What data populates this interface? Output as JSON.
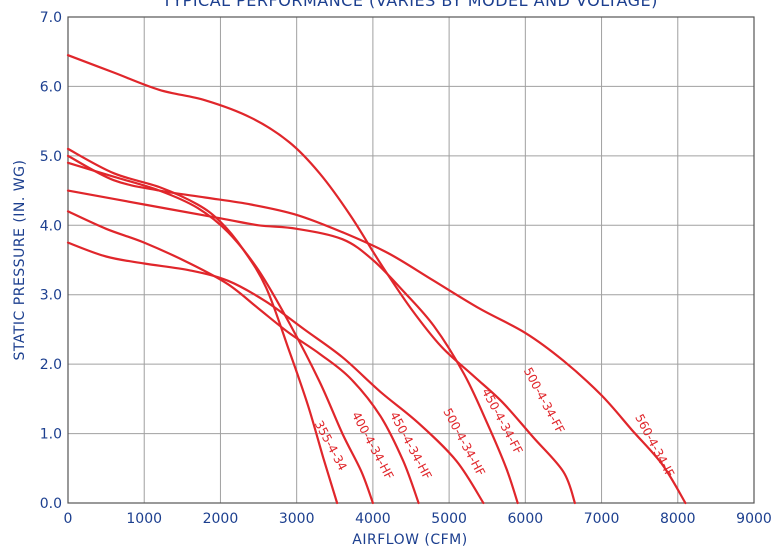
{
  "chart_data": {
    "type": "line",
    "title": "TYPICAL PERFORMANCE (VARIES BY MODEL AND VOLTAGE)",
    "xlabel": "AIRFLOW (CFM)",
    "ylabel": "STATIC PRESSURE (IN. WG)",
    "xlim": [
      0,
      9000
    ],
    "ylim": [
      0,
      7
    ],
    "x_ticks": [
      "0",
      "1000",
      "2000",
      "3000",
      "4000",
      "5000",
      "6000",
      "7000",
      "8000",
      "9000"
    ],
    "y_ticks": [
      "0.0",
      "1.0",
      "2.0",
      "3.0",
      "4.0",
      "5.0",
      "6.0",
      "7.0"
    ],
    "grid": true,
    "colors": {
      "curve": "#e0262b",
      "text": "#1c3f8f",
      "grid": "#a0a0a0"
    },
    "series": [
      {
        "name": "355-4-34",
        "points": [
          [
            0,
            5.1
          ],
          [
            600,
            4.75
          ],
          [
            1200,
            4.55
          ],
          [
            1700,
            4.3
          ],
          [
            2000,
            4.05
          ],
          [
            2300,
            3.65
          ],
          [
            2600,
            3.1
          ],
          [
            2900,
            2.2
          ],
          [
            3150,
            1.4
          ],
          [
            3350,
            0.65
          ],
          [
            3530,
            0.0
          ]
        ]
      },
      {
        "name": "400-4-34-HF",
        "points": [
          [
            0,
            4.9
          ],
          [
            600,
            4.7
          ],
          [
            1200,
            4.5
          ],
          [
            1700,
            4.25
          ],
          [
            2100,
            3.9
          ],
          [
            2500,
            3.35
          ],
          [
            2900,
            2.6
          ],
          [
            3300,
            1.75
          ],
          [
            3600,
            1.0
          ],
          [
            3850,
            0.45
          ],
          [
            4000,
            0.0
          ]
        ]
      },
      {
        "name": "450-4-34-HF",
        "points": [
          [
            0,
            4.2
          ],
          [
            500,
            3.95
          ],
          [
            1000,
            3.75
          ],
          [
            1600,
            3.45
          ],
          [
            2100,
            3.15
          ],
          [
            2500,
            2.8
          ],
          [
            2900,
            2.45
          ],
          [
            3300,
            2.15
          ],
          [
            3700,
            1.8
          ],
          [
            4100,
            1.25
          ],
          [
            4400,
            0.6
          ],
          [
            4600,
            0.0
          ]
        ]
      },
      {
        "name": "500-4-34-HF",
        "points": [
          [
            0,
            3.75
          ],
          [
            500,
            3.55
          ],
          [
            1000,
            3.45
          ],
          [
            1600,
            3.35
          ],
          [
            2100,
            3.2
          ],
          [
            2600,
            2.9
          ],
          [
            3100,
            2.5
          ],
          [
            3600,
            2.1
          ],
          [
            4100,
            1.6
          ],
          [
            4600,
            1.15
          ],
          [
            5100,
            0.6
          ],
          [
            5450,
            0.0
          ]
        ]
      },
      {
        "name": "450-4-34-FF",
        "points": [
          [
            0,
            4.5
          ],
          [
            1000,
            4.3
          ],
          [
            2000,
            4.1
          ],
          [
            2500,
            4.0
          ],
          [
            3000,
            3.95
          ],
          [
            3600,
            3.8
          ],
          [
            4000,
            3.5
          ],
          [
            4400,
            3.05
          ],
          [
            4800,
            2.55
          ],
          [
            5200,
            1.85
          ],
          [
            5500,
            1.15
          ],
          [
            5750,
            0.5
          ],
          [
            5900,
            0.0
          ]
        ]
      },
      {
        "name": "500-4-34-FF",
        "points": [
          [
            0,
            6.45
          ],
          [
            600,
            6.2
          ],
          [
            1200,
            5.95
          ],
          [
            1800,
            5.8
          ],
          [
            2400,
            5.55
          ],
          [
            2900,
            5.2
          ],
          [
            3300,
            4.75
          ],
          [
            3700,
            4.15
          ],
          [
            4100,
            3.45
          ],
          [
            4500,
            2.8
          ],
          [
            4900,
            2.25
          ],
          [
            5300,
            1.85
          ],
          [
            5700,
            1.45
          ],
          [
            6100,
            0.95
          ],
          [
            6500,
            0.45
          ],
          [
            6650,
            0.0
          ]
        ]
      },
      {
        "name": "560-4-34-IF",
        "points": [
          [
            0,
            5.0
          ],
          [
            600,
            4.65
          ],
          [
            1200,
            4.5
          ],
          [
            1800,
            4.4
          ],
          [
            2400,
            4.3
          ],
          [
            3000,
            4.15
          ],
          [
            3600,
            3.9
          ],
          [
            4200,
            3.6
          ],
          [
            4800,
            3.2
          ],
          [
            5400,
            2.8
          ],
          [
            6000,
            2.45
          ],
          [
            6500,
            2.05
          ],
          [
            7000,
            1.55
          ],
          [
            7400,
            1.05
          ],
          [
            7800,
            0.55
          ],
          [
            8100,
            0.0
          ]
        ]
      }
    ],
    "labels": [
      {
        "text": "355-4-34",
        "x": 3400,
        "y": 0.8
      },
      {
        "text": "400-4-34-HF",
        "x": 3950,
        "y": 0.8
      },
      {
        "text": "450-4-34-HF",
        "x": 4450,
        "y": 0.8
      },
      {
        "text": "500-4-34-HF",
        "x": 5150,
        "y": 0.85
      },
      {
        "text": "450-4-34-FF",
        "x": 5650,
        "y": 1.15
      },
      {
        "text": "500-4-34-FF",
        "x": 6200,
        "y": 1.45
      },
      {
        "text": "560-4-34-IF",
        "x": 7650,
        "y": 0.8
      }
    ]
  }
}
